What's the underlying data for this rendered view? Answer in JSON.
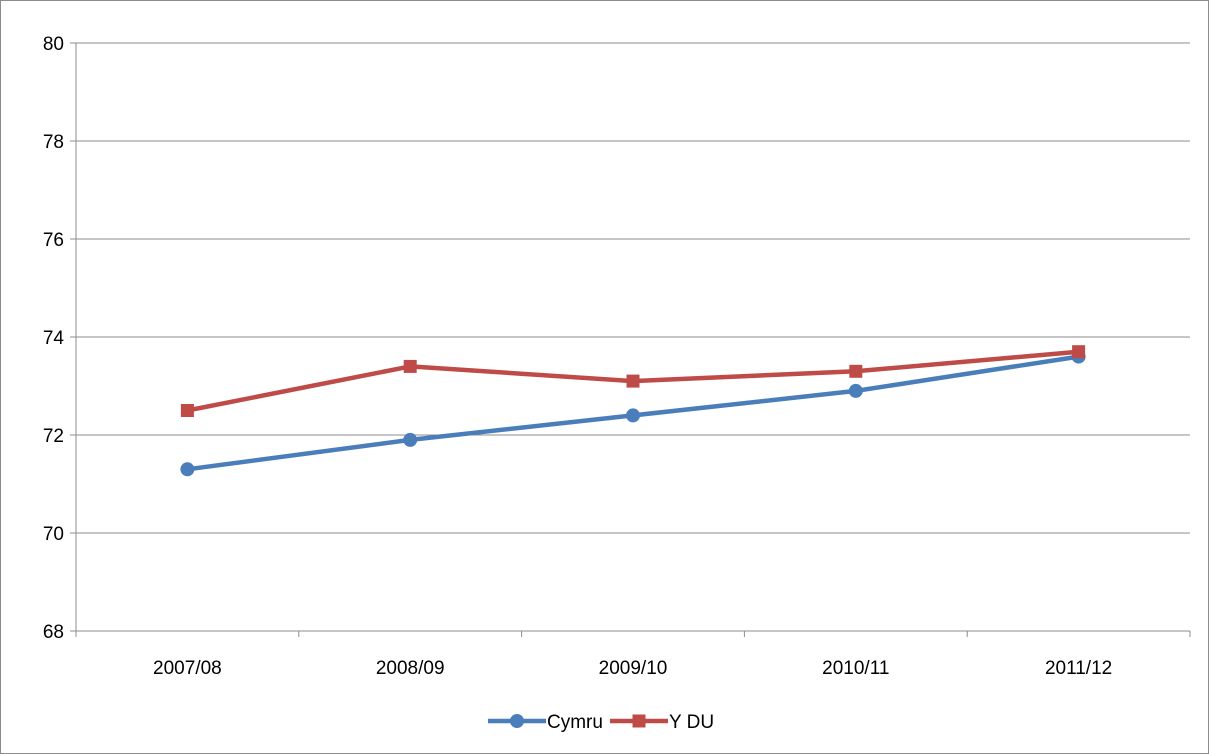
{
  "chart_data": {
    "type": "line",
    "title": "",
    "xlabel": "",
    "ylabel": "",
    "categories": [
      "2007/08",
      "2008/09",
      "2009/10",
      "2010/11",
      "2011/12"
    ],
    "ylim": [
      68,
      80
    ],
    "yticks": [
      68,
      70,
      72,
      74,
      76,
      78,
      80
    ],
    "grid": "horizontal",
    "legend_position": "bottom",
    "series": [
      {
        "name": "Cymru",
        "color": "#4a7ebb",
        "marker": "circle",
        "values": [
          71.3,
          71.9,
          72.4,
          72.9,
          73.6
        ]
      },
      {
        "name": "Y DU",
        "color": "#be4b48",
        "marker": "square",
        "values": [
          72.5,
          73.4,
          73.1,
          73.3,
          73.7
        ]
      }
    ]
  }
}
